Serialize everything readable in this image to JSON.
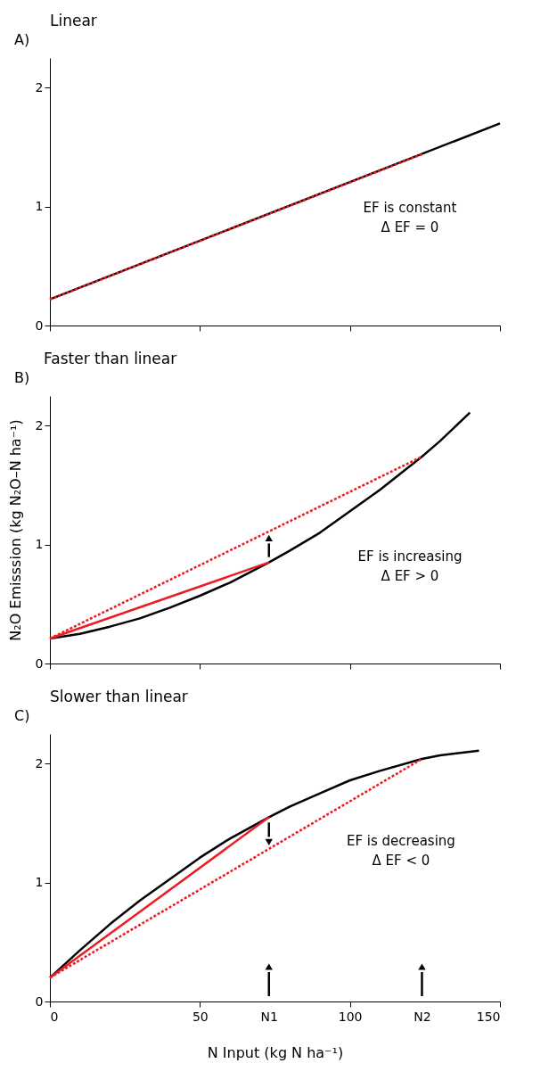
{
  "chart_data": [
    {
      "type": "line",
      "title": "Linear",
      "annotations": [
        "A)",
        "EF is constant\nΔ EF = 0"
      ],
      "xlim": [
        0,
        150
      ],
      "xticks": [
        0,
        50,
        100,
        150
      ],
      "ylim": [
        0,
        2.25
      ],
      "yticks": [
        0,
        1,
        2
      ],
      "tick_labels": "y",
      "series": [
        {
          "color": "#000000",
          "x": [
            0,
            150
          ],
          "values": [
            0.22,
            1.7
          ]
        },
        {
          "color": "#ed1c24",
          "x": [
            0,
            124
          ],
          "values": [
            0.22,
            1.44
          ],
          "line_style": "dotted"
        }
      ]
    },
    {
      "type": "line",
      "title": "Faster than linear",
      "ylabel": "N₂O Emisssion (kg N₂O–N ha⁻¹)",
      "annotations": [
        "B)",
        "EF is increasing\nΔ EF > 0"
      ],
      "xlim": [
        0,
        150
      ],
      "xticks": [
        0,
        50,
        100,
        150
      ],
      "ylim": [
        0,
        2.25
      ],
      "yticks": [
        0,
        1,
        2
      ],
      "tick_labels": "y",
      "series": [
        {
          "color": "#000000",
          "x": [
            0,
            10,
            20,
            30,
            40,
            50,
            60,
            73,
            80,
            90,
            100,
            110,
            124,
            130,
            140
          ],
          "values": [
            0.21,
            0.25,
            0.31,
            0.38,
            0.47,
            0.57,
            0.68,
            0.85,
            0.95,
            1.1,
            1.28,
            1.46,
            1.74,
            1.87,
            2.11
          ]
        },
        {
          "color": "#ed1c24",
          "x": [
            0,
            73
          ],
          "values": [
            0.21,
            0.85
          ],
          "line_style": "solid"
        },
        {
          "color": "#ed1c24",
          "x": [
            0,
            124
          ],
          "values": [
            0.21,
            1.74
          ],
          "line_style": "dotted"
        }
      ]
    },
    {
      "type": "line",
      "title": "Slower than linear",
      "xlabel": "N Input (kg N ha⁻¹)",
      "annotations": [
        "C)",
        "EF is decreasing\nΔ EF < 0"
      ],
      "xlim": [
        0,
        150
      ],
      "xticks": [
        0,
        50,
        {
          "value": 73,
          "label": "N1"
        },
        100,
        {
          "value": 124,
          "label": "N2"
        },
        150
      ],
      "ylim": [
        0,
        2.25
      ],
      "yticks": [
        0,
        1,
        2
      ],
      "series": [
        {
          "color": "#000000",
          "x": [
            0,
            10,
            20,
            30,
            40,
            50,
            60,
            73,
            80,
            90,
            100,
            110,
            124,
            130,
            143
          ],
          "values": [
            0.2,
            0.43,
            0.65,
            0.85,
            1.03,
            1.21,
            1.37,
            1.55,
            1.64,
            1.75,
            1.86,
            1.94,
            2.04,
            2.07,
            2.11
          ]
        },
        {
          "color": "#ed1c24",
          "x": [
            0,
            73
          ],
          "values": [
            0.2,
            1.55
          ],
          "line_style": "solid"
        },
        {
          "color": "#ed1c24",
          "x": [
            0,
            124
          ],
          "values": [
            0.2,
            2.04
          ],
          "line_style": "dotted"
        }
      ]
    }
  ]
}
